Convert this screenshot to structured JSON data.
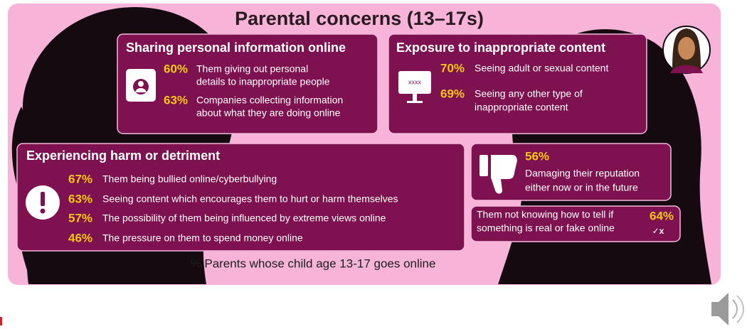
{
  "title": "Parental concerns (13–17s)",
  "panels": [
    {
      "heading": "Sharing personal information online",
      "items": [
        {
          "percent": "60%",
          "text": [
            "Them giving out personal",
            "details to inappropriate people"
          ]
        },
        {
          "percent": "63%",
          "text": [
            "Companies collecting information",
            "about what they are doing online"
          ]
        }
      ]
    },
    {
      "heading": "Exposure to inappropriate content",
      "items": [
        {
          "percent": "70%",
          "text": [
            "Seeing adult or sexual content"
          ]
        },
        {
          "percent": "69%",
          "text": [
            "Seeing any other type of",
            "inappropriate content"
          ]
        }
      ]
    },
    {
      "heading": "Experiencing harm or detriment",
      "items": [
        {
          "percent": "67%",
          "text": [
            "Them being bullied online/cyberbullying"
          ]
        },
        {
          "percent": "63%",
          "text": [
            "Seeing content which encourages them to hurt or harm themselves"
          ]
        },
        {
          "percent": "57%",
          "text": [
            "The possibility of them being influenced by extreme views online"
          ]
        },
        {
          "percent": "46%",
          "text": [
            "The pressure on them to spend money online"
          ]
        }
      ]
    },
    {
      "items": [
        {
          "percent": "56%",
          "text": [
            "Damaging their reputation",
            "either now or in the future"
          ]
        }
      ]
    },
    {
      "items": [
        {
          "percent": "64%",
          "text": [
            "Them not knowing how to tell if",
            "something is real or fake online"
          ]
        }
      ]
    }
  ],
  "footnote": "% Parents whose child age 13-17 goes online"
}
